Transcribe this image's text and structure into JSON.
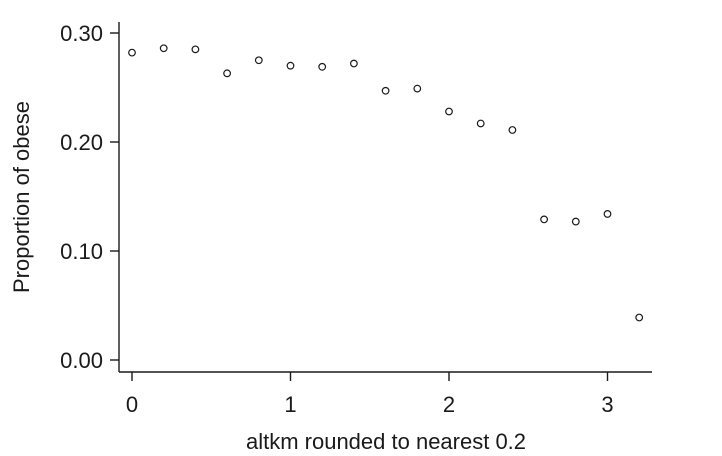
{
  "chart_data": {
    "type": "scatter",
    "title": "",
    "xlabel": "altkm rounded to nearest 0.2",
    "ylabel": "Proportion of obese",
    "xlim": [
      0,
      3.25
    ],
    "ylim": [
      0,
      0.3
    ],
    "xticks": [
      0,
      1,
      2,
      3
    ],
    "xtick_labels": [
      "0",
      "1",
      "2",
      "3"
    ],
    "yticks": [
      0,
      0.1,
      0.2,
      0.3
    ],
    "ytick_labels": [
      "0.00",
      "0.10",
      "0.20",
      "0.30"
    ],
    "grid": false,
    "marker": "hollow-circle",
    "marker_color": "#1a1a1a",
    "points": [
      {
        "x": 0.0,
        "y": 0.282
      },
      {
        "x": 0.2,
        "y": 0.286
      },
      {
        "x": 0.4,
        "y": 0.285
      },
      {
        "x": 0.6,
        "y": 0.263
      },
      {
        "x": 0.8,
        "y": 0.275
      },
      {
        "x": 1.0,
        "y": 0.27
      },
      {
        "x": 1.2,
        "y": 0.269
      },
      {
        "x": 1.4,
        "y": 0.272
      },
      {
        "x": 1.6,
        "y": 0.247
      },
      {
        "x": 1.8,
        "y": 0.249
      },
      {
        "x": 2.0,
        "y": 0.228
      },
      {
        "x": 2.2,
        "y": 0.217
      },
      {
        "x": 2.4,
        "y": 0.211
      },
      {
        "x": 2.6,
        "y": 0.129
      },
      {
        "x": 2.8,
        "y": 0.127
      },
      {
        "x": 3.0,
        "y": 0.134
      },
      {
        "x": 3.2,
        "y": 0.039
      }
    ]
  }
}
